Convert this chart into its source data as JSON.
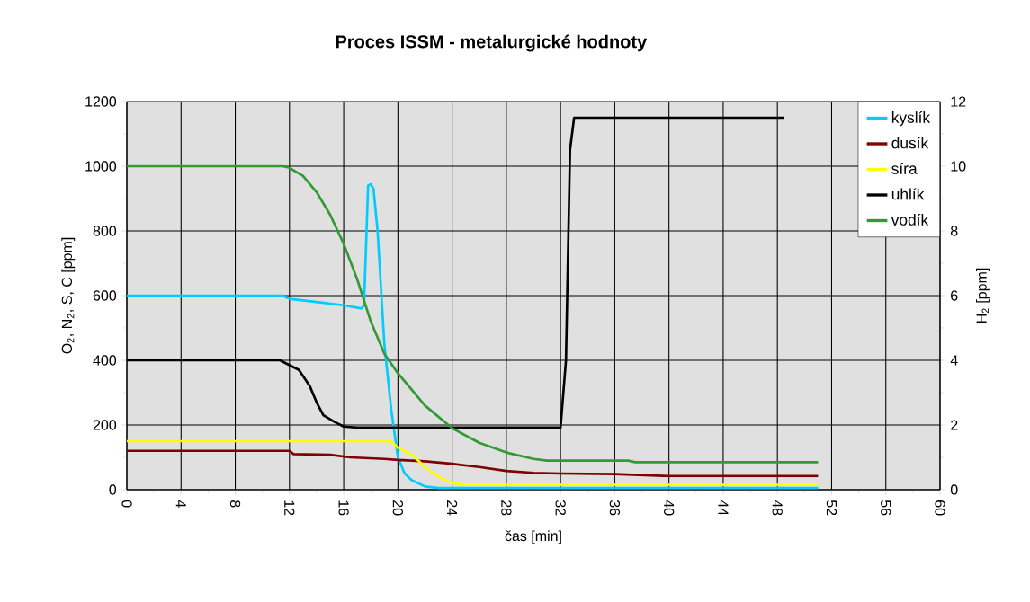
{
  "chart_data": {
    "type": "line",
    "title": "Proces ISSM - metalurgické hodnoty",
    "xlabel": "čas [min]",
    "ylabel": "O$_{2}$, N$_{2}$, S, C [ppm]",
    "y2label": "H$_{2}$ [ppm]",
    "xlim": [
      0,
      60
    ],
    "xticks": [
      0,
      4,
      8,
      12,
      16,
      20,
      24,
      28,
      32,
      36,
      40,
      44,
      48,
      52,
      56,
      60
    ],
    "ylim": [
      0,
      1200
    ],
    "yticks": [
      0,
      200,
      400,
      600,
      800,
      1000,
      1200
    ],
    "y2lim": [
      0,
      12
    ],
    "y2ticks": [
      0,
      2,
      4,
      6,
      8,
      10,
      12
    ],
    "grid": true,
    "legend": "top right",
    "marker": "none",
    "line_style": "solid",
    "series": [
      {
        "name": "kyslík",
        "color": "#00ccff",
        "x": [
          0,
          11.5,
          12,
          14,
          16,
          17.3,
          17.5,
          17.8,
          18,
          18.2,
          18.5,
          19,
          19.5,
          20,
          20.5,
          21,
          22,
          23,
          24,
          51
        ],
        "values": [
          600,
          600,
          590,
          580,
          570,
          560,
          570,
          940,
          945,
          930,
          800,
          450,
          250,
          100,
          50,
          30,
          10,
          5,
          5,
          5
        ]
      },
      {
        "name": "dusík",
        "color": "#800000",
        "x": [
          0,
          12,
          12.3,
          15,
          16.5,
          19,
          20,
          22,
          24,
          26,
          28,
          30,
          32,
          36,
          40,
          51
        ],
        "values": [
          120,
          120,
          110,
          108,
          100,
          95,
          92,
          88,
          80,
          70,
          58,
          52,
          50,
          48,
          42,
          42
        ]
      },
      {
        "name": "síra",
        "color": "#ffff00",
        "x": [
          0,
          19.5,
          20,
          21,
          22,
          23,
          24,
          25,
          51
        ],
        "values": [
          150,
          150,
          130,
          110,
          70,
          40,
          20,
          15,
          15
        ]
      },
      {
        "name": "uhlík",
        "color": "#000000",
        "x": [
          0,
          11.3,
          12,
          12.7,
          13.5,
          14,
          14.5,
          15.3,
          16,
          17,
          32,
          32.4,
          32.7,
          33,
          48.5
        ],
        "values": [
          400,
          400,
          385,
          370,
          320,
          270,
          230,
          210,
          195,
          192,
          192,
          400,
          1050,
          1150,
          1150
        ]
      },
      {
        "name": "vodík",
        "color": "#339933",
        "axis": "y2",
        "x": [
          0,
          11.5,
          12,
          13,
          14,
          15,
          16,
          17,
          18,
          19,
          20,
          21,
          22,
          24,
          26,
          28,
          30,
          31,
          37,
          37.5,
          51
        ],
        "values": [
          10,
          10,
          9.95,
          9.7,
          9.2,
          8.5,
          7.6,
          6.5,
          5.2,
          4.2,
          3.6,
          3.1,
          2.6,
          1.9,
          1.45,
          1.15,
          0.95,
          0.9,
          0.9,
          0.85,
          0.85
        ]
      }
    ]
  }
}
